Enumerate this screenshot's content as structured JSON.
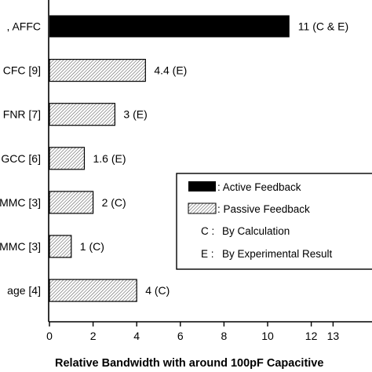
{
  "chart_data": {
    "type": "bar",
    "orientation": "horizontal",
    "categories": [
      ", AFFC",
      "CFC [9]",
      "FNR [7]",
      "GCC [6]",
      "MMC [3]",
      "MMC [3]",
      "age [4]"
    ],
    "values": [
      11,
      4.4,
      3,
      1.6,
      2,
      1,
      4
    ],
    "value_labels": [
      "11 (C & E)",
      "4.4 (E)",
      "3 (E)",
      "1.6 (E)",
      "2 (C)",
      "1 (C)",
      "4 (C)"
    ],
    "bar_kind": [
      "active",
      "passive",
      "passive",
      "passive",
      "passive",
      "passive",
      "passive"
    ],
    "xlabel": "Relative  Bandwidth with around 100pF Capacitive",
    "ylabel": "",
    "title": "",
    "xlim": [
      0,
      13
    ],
    "x_ticks": [
      "0",
      "2",
      "4",
      "6",
      "8",
      "10",
      "12",
      "13"
    ],
    "grid": false,
    "legend": {
      "placement": "lower-right",
      "entries": [
        {
          "symbol": "active",
          "text": ": Active Feedback"
        },
        {
          "symbol": "passive",
          "text": ": Passive Feedback"
        },
        {
          "symbol": "C :",
          "text": "By Calculation"
        },
        {
          "symbol": "E :",
          "text": "By Experimental Result"
        }
      ]
    }
  },
  "colors": {
    "active": "#000000",
    "passive_hatch": "#555555",
    "axis": "#000000"
  }
}
